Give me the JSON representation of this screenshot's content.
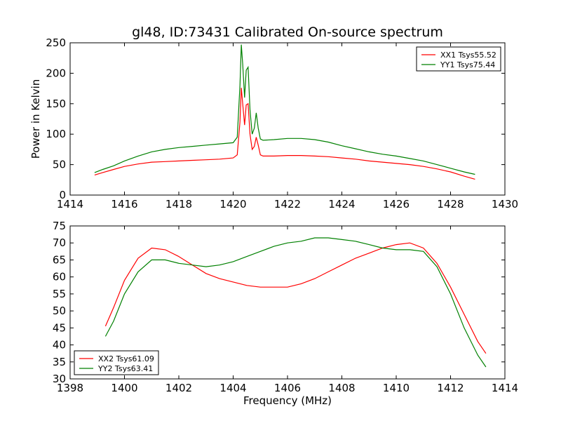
{
  "figure": {
    "title": "gl48, ID:73431 Calibrated On-source spectrum",
    "xlabel": "Frequency (MHz)"
  },
  "chart_data": [
    {
      "type": "line",
      "ylabel": "Power in Kelvin",
      "xlim": [
        1414,
        1430
      ],
      "ylim": [
        0,
        250
      ],
      "xticks": [
        1414,
        1416,
        1418,
        1420,
        1422,
        1424,
        1426,
        1428,
        1430
      ],
      "yticks": [
        0,
        50,
        100,
        150,
        200,
        250
      ],
      "legend_position": "top-right",
      "series": [
        {
          "name": "XX1 Tsys55.52",
          "color": "#ff0000",
          "x": [
            1414.9,
            1415.2,
            1415.6,
            1416.0,
            1416.5,
            1417.0,
            1417.5,
            1418.0,
            1418.5,
            1419.0,
            1419.5,
            1420.0,
            1420.15,
            1420.25,
            1420.3,
            1420.35,
            1420.42,
            1420.48,
            1420.55,
            1420.62,
            1420.7,
            1420.78,
            1420.85,
            1420.92,
            1421.0,
            1421.1,
            1421.5,
            1422.0,
            1422.5,
            1423.0,
            1423.5,
            1424.0,
            1424.5,
            1425.0,
            1425.5,
            1426.0,
            1426.5,
            1427.0,
            1427.5,
            1428.0,
            1428.5,
            1428.9
          ],
          "y": [
            33,
            37,
            42,
            47,
            51,
            54,
            55,
            56,
            57,
            58,
            59,
            61,
            66,
            120,
            176,
            150,
            115,
            148,
            150,
            100,
            75,
            80,
            95,
            82,
            66,
            64,
            64,
            65,
            65,
            64,
            63,
            61,
            59,
            56,
            54,
            52,
            50,
            47,
            43,
            38,
            31,
            26
          ]
        },
        {
          "name": "YY1 Tsys75.44",
          "color": "#008000",
          "x": [
            1414.9,
            1415.2,
            1415.6,
            1416.0,
            1416.5,
            1417.0,
            1417.5,
            1418.0,
            1418.5,
            1419.0,
            1419.5,
            1420.0,
            1420.15,
            1420.25,
            1420.3,
            1420.35,
            1420.42,
            1420.48,
            1420.55,
            1420.62,
            1420.7,
            1420.78,
            1420.85,
            1420.92,
            1421.0,
            1421.1,
            1421.5,
            1422.0,
            1422.5,
            1423.0,
            1423.5,
            1424.0,
            1424.5,
            1425.0,
            1425.5,
            1426.0,
            1426.5,
            1427.0,
            1427.5,
            1428.0,
            1428.5,
            1428.9
          ],
          "y": [
            37,
            42,
            48,
            56,
            64,
            71,
            75,
            78,
            80,
            82,
            84,
            86,
            95,
            180,
            247,
            215,
            160,
            205,
            210,
            140,
            100,
            110,
            135,
            110,
            92,
            90,
            91,
            93,
            93,
            91,
            87,
            81,
            76,
            71,
            67,
            64,
            60,
            56,
            50,
            44,
            38,
            34
          ]
        }
      ]
    },
    {
      "type": "line",
      "ylabel": "",
      "xlim": [
        1398,
        1414
      ],
      "ylim": [
        30,
        75
      ],
      "xticks": [
        1398,
        1400,
        1402,
        1404,
        1406,
        1408,
        1410,
        1412,
        1414
      ],
      "yticks": [
        30,
        35,
        40,
        45,
        50,
        55,
        60,
        65,
        70,
        75
      ],
      "legend_position": "bottom-left",
      "series": [
        {
          "name": "XX2 Tsys61.09",
          "color": "#ff0000",
          "x": [
            1399.3,
            1399.6,
            1400.0,
            1400.5,
            1401.0,
            1401.5,
            1402.0,
            1402.5,
            1403.0,
            1403.5,
            1404.0,
            1404.5,
            1405.0,
            1405.5,
            1406.0,
            1406.5,
            1407.0,
            1407.5,
            1408.0,
            1408.5,
            1409.0,
            1409.5,
            1410.0,
            1410.5,
            1411.0,
            1411.5,
            1412.0,
            1412.5,
            1413.0,
            1413.3
          ],
          "y": [
            45.5,
            51,
            59,
            65.5,
            68.5,
            68,
            66,
            63.5,
            61,
            59.5,
            58.5,
            57.5,
            57,
            57,
            57,
            58,
            59.5,
            61.5,
            63.5,
            65.5,
            67,
            68.5,
            69.5,
            70,
            68.5,
            64,
            57,
            49,
            41,
            37.5
          ]
        },
        {
          "name": "YY2 Tsys63.41",
          "color": "#008000",
          "x": [
            1399.3,
            1399.6,
            1400.0,
            1400.5,
            1401.0,
            1401.5,
            1402.0,
            1402.5,
            1403.0,
            1403.5,
            1404.0,
            1404.5,
            1405.0,
            1405.5,
            1406.0,
            1406.5,
            1407.0,
            1407.5,
            1408.0,
            1408.5,
            1409.0,
            1409.5,
            1410.0,
            1410.5,
            1411.0,
            1411.5,
            1412.0,
            1412.5,
            1413.0,
            1413.3
          ],
          "y": [
            42.5,
            47,
            55,
            61.5,
            65,
            65,
            64,
            63.5,
            63,
            63.5,
            64.5,
            66,
            67.5,
            69,
            70,
            70.5,
            71.5,
            71.5,
            71,
            70.5,
            69.5,
            68.5,
            68,
            68,
            67.5,
            63,
            55,
            45,
            37,
            33.5
          ]
        }
      ]
    }
  ]
}
